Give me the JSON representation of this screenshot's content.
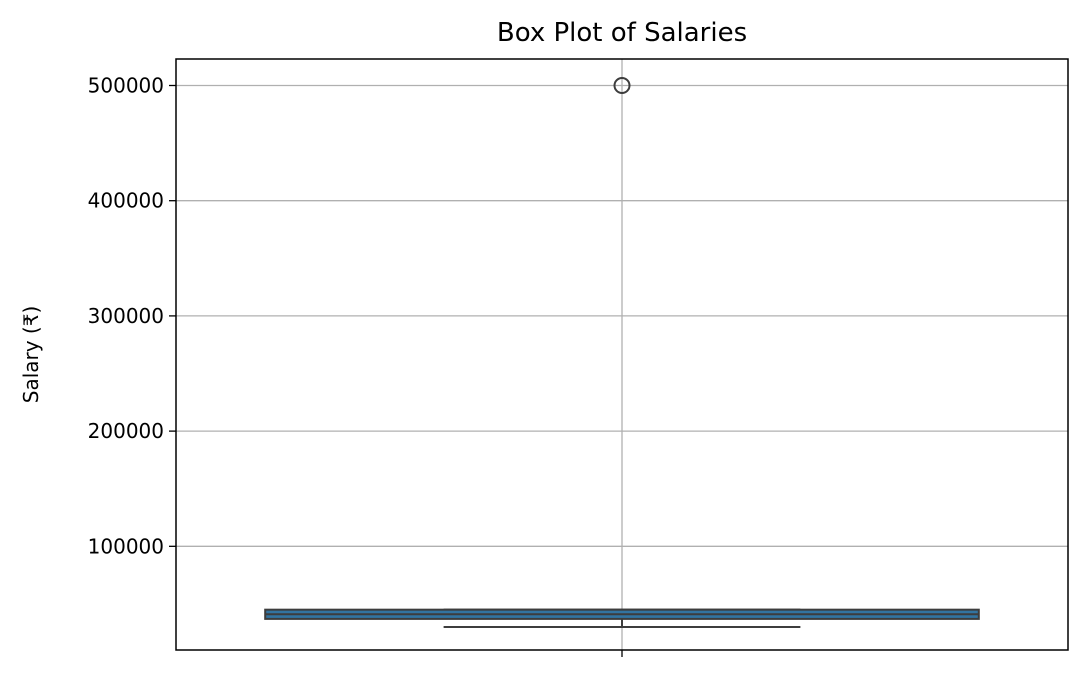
{
  "chart_data": {
    "type": "box",
    "title": "Box Plot of Salaries",
    "xlabel": "",
    "ylabel": "Salary (₹)",
    "ylim": [
      10000,
      523000
    ],
    "yticks": [
      100000,
      200000,
      300000,
      400000,
      500000
    ],
    "ytick_labels": [
      "100000",
      "200000",
      "300000",
      "400000",
      "500000"
    ],
    "grid": true,
    "box": {
      "whisker_low": 30000,
      "q1": 37000,
      "median": 41000,
      "q3": 45000,
      "whisker_high": 45000,
      "outliers": [
        500000
      ]
    },
    "colors": {
      "box_fill": "#3274a1",
      "box_edge": "#3d3d3d",
      "grid": "#b0b0b0",
      "axes": "#000000"
    }
  }
}
